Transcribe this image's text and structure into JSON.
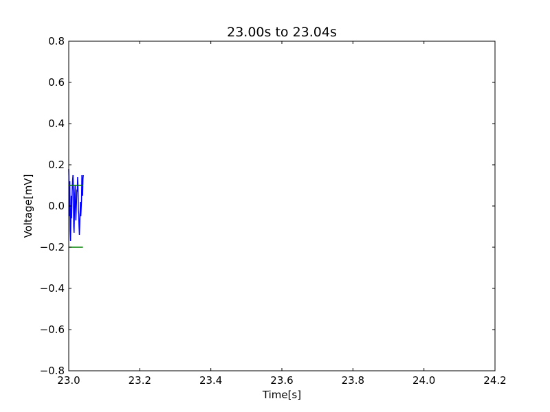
{
  "chart_data": {
    "type": "line",
    "title": "23.00s to 23.04s",
    "xlabel": "Time[s]",
    "ylabel": "Voltage[mV]",
    "xlim": [
      23.0,
      24.2
    ],
    "ylim": [
      -0.8,
      0.8
    ],
    "xticks": [
      23.0,
      23.2,
      23.4,
      23.6,
      23.8,
      24.0,
      24.2
    ],
    "xtick_labels": [
      "23.0",
      "23.2",
      "23.4",
      "23.6",
      "23.8",
      "24.0",
      "24.2"
    ],
    "yticks": [
      -0.8,
      -0.6,
      -0.4,
      -0.2,
      0.0,
      0.2,
      0.4,
      0.6,
      0.8
    ],
    "ytick_labels": [
      "−0.8",
      "−0.6",
      "−0.4",
      "−0.2",
      "0.0",
      "0.2",
      "0.4",
      "0.6",
      "0.8"
    ],
    "grid": false,
    "series": [
      {
        "color": "#0000ff",
        "x": [
          23.0,
          23.001,
          23.002,
          23.003,
          23.004,
          23.005,
          23.006,
          23.007,
          23.008,
          23.009,
          23.01,
          23.011,
          23.012,
          23.013,
          23.014,
          23.015,
          23.016,
          23.017,
          23.018,
          23.019,
          23.02,
          23.021,
          23.022,
          23.023,
          23.024,
          23.025,
          23.026,
          23.027,
          23.028,
          23.029,
          23.03,
          23.031,
          23.032,
          23.033,
          23.034,
          23.035,
          23.036,
          23.037,
          23.038,
          23.039,
          23.04,
          23.041
        ],
        "y": [
          0.18,
          0.1,
          -0.05,
          0.12,
          -0.12,
          -0.17,
          -0.08,
          0.05,
          -0.06,
          0.02,
          0.09,
          0.13,
          0.15,
          0.08,
          -0.1,
          -0.13,
          -0.04,
          0.06,
          0.1,
          0.02,
          -0.07,
          -0.02,
          0.03,
          0.08,
          0.07,
          0.14,
          0.1,
          -0.02,
          -0.04,
          -0.1,
          -0.14,
          -0.09,
          -0.03,
          0.02,
          -0.05,
          -0.01,
          0.03,
          0.15,
          0.1,
          0.05,
          0.13,
          0.15
        ]
      },
      {
        "color": "#008000",
        "x": [
          23.0,
          23.04
        ],
        "y": [
          0.1,
          0.1
        ]
      },
      {
        "color": "#008000",
        "x": [
          23.0,
          23.04
        ],
        "y": [
          -0.2,
          -0.2
        ]
      }
    ]
  }
}
